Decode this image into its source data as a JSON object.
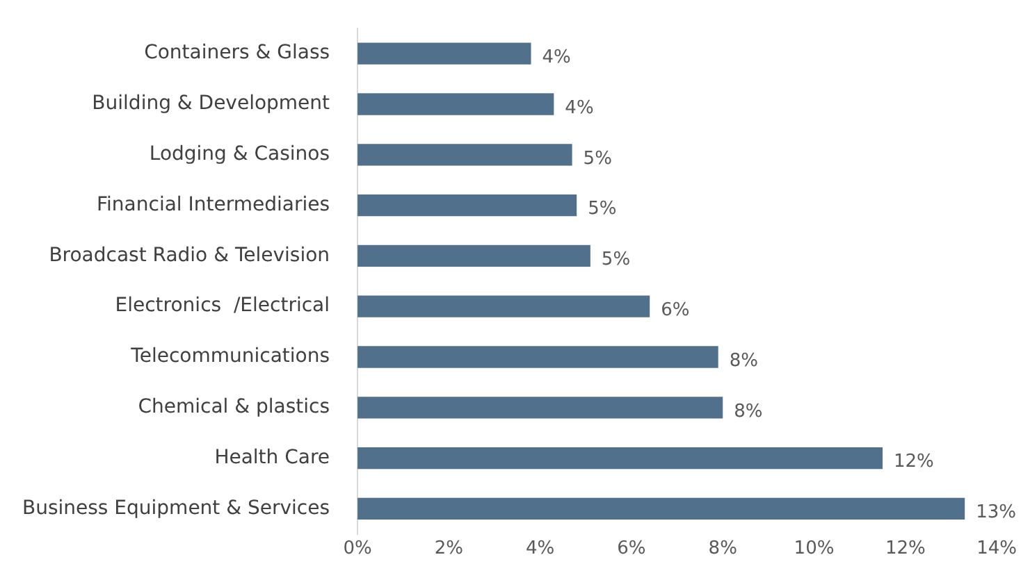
{
  "chart_data": {
    "type": "bar",
    "orientation": "horizontal",
    "categories": [
      "Containers & Glass",
      "Building & Development",
      "Lodging & Casinos",
      "Financial Intermediaries",
      "Broadcast Radio & Television",
      "Electronics  /Electrical",
      "Telecommunications",
      "Chemical & plastics",
      "Health Care",
      "Business Equipment & Services"
    ],
    "values": [
      3.8,
      4.3,
      4.7,
      4.8,
      5.1,
      6.4,
      7.9,
      8.0,
      11.5,
      13.3
    ],
    "value_labels": [
      "4%",
      "4%",
      "5%",
      "5%",
      "5%",
      "6%",
      "8%",
      "8%",
      "12%",
      "13%"
    ],
    "color": "#50708c",
    "xlim": [
      0,
      14
    ],
    "xticks": [
      {
        "value": 0,
        "label": "0%"
      },
      {
        "value": 2,
        "label": "2%"
      },
      {
        "value": 4,
        "label": "4%"
      },
      {
        "value": 6,
        "label": "6%"
      },
      {
        "value": 8,
        "label": "8%"
      },
      {
        "value": 10,
        "label": "10%"
      },
      {
        "value": 12,
        "label": "12%"
      },
      {
        "value": 14,
        "label": "14%"
      }
    ],
    "grid": false,
    "legend": false
  }
}
